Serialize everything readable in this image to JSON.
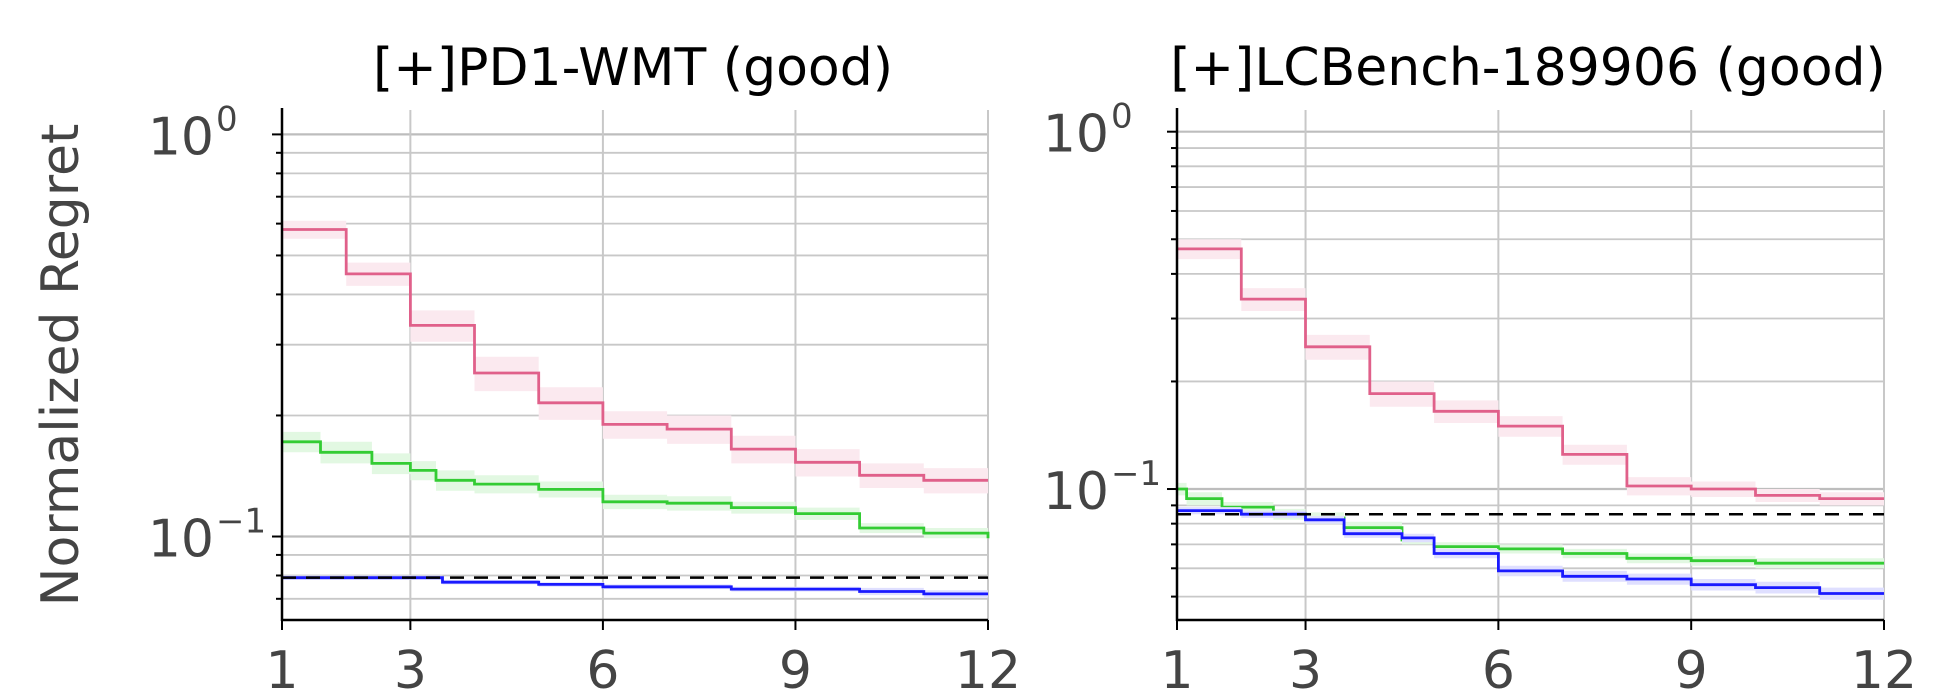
{
  "chart_data": [
    {
      "type": "line",
      "title": "[+]PD1-WMT (good)",
      "xlabel": "",
      "ylabel": "Normalized Regret",
      "yscale": "log",
      "xlim": [
        1,
        12
      ],
      "ylim": [
        0.062,
        1.15
      ],
      "xticks": [
        "1",
        "3",
        "6",
        "9",
        "12"
      ],
      "yticks": [
        {
          "base": "10",
          "exp": "0"
        },
        {
          "base": "10",
          "exp": "−1"
        }
      ],
      "grid": true,
      "series": [
        {
          "color": "#e0608a",
          "step": true,
          "x": [
            1,
            2,
            3,
            4,
            5,
            6,
            7,
            8,
            9,
            10,
            11,
            12
          ],
          "y": [
            0.58,
            0.45,
            0.335,
            0.255,
            0.215,
            0.19,
            0.185,
            0.165,
            0.153,
            0.142,
            0.138,
            0.138
          ],
          "band": [
            0.03,
            0.03,
            0.03,
            0.025,
            0.02,
            0.015,
            0.015,
            0.013,
            0.012,
            0.01,
            0.01,
            0.01
          ]
        },
        {
          "color": "#33cc33",
          "step": true,
          "x": [
            1,
            1.6,
            2.4,
            3,
            3.4,
            4,
            5,
            6,
            7,
            8,
            9,
            10,
            11,
            12
          ],
          "y": [
            0.172,
            0.162,
            0.152,
            0.146,
            0.138,
            0.135,
            0.131,
            0.122,
            0.121,
            0.118,
            0.114,
            0.105,
            0.102,
            0.099
          ],
          "band": [
            0.01,
            0.01,
            0.009,
            0.008,
            0.008,
            0.007,
            0.006,
            0.005,
            0.005,
            0.004,
            0.004,
            0.003,
            0.003,
            0.003
          ]
        },
        {
          "color": "#1a1aff",
          "step": true,
          "x": [
            1,
            2,
            3,
            3.5,
            4,
            5,
            6,
            7,
            8,
            9,
            10,
            11,
            12
          ],
          "y": [
            0.079,
            0.079,
            0.079,
            0.077,
            0.077,
            0.076,
            0.075,
            0.075,
            0.074,
            0.074,
            0.073,
            0.072,
            0.072
          ],
          "band": [
            0.001,
            0.001,
            0.001,
            0.001,
            0.001,
            0.001,
            0.001,
            0.001,
            0.001,
            0.001,
            0.0015,
            0.0015,
            0.0015
          ]
        },
        {
          "color": "#000000",
          "dashed": true,
          "x": [
            1,
            12
          ],
          "y": [
            0.079,
            0.079
          ]
        }
      ]
    },
    {
      "type": "line",
      "title": "[+]LCBench-189906 (good)",
      "xlabel": "",
      "ylabel": "",
      "yscale": "log",
      "xlim": [
        1,
        12
      ],
      "ylim": [
        0.043,
        1.15
      ],
      "xticks": [
        "1",
        "3",
        "6",
        "9",
        "12"
      ],
      "yticks": [
        {
          "base": "10",
          "exp": "0"
        },
        {
          "base": "10",
          "exp": "−1"
        }
      ],
      "grid": true,
      "series": [
        {
          "color": "#e0608a",
          "step": true,
          "x": [
            1,
            2,
            3,
            4,
            5,
            6,
            7,
            8,
            9,
            10,
            11,
            12
          ],
          "y": [
            0.47,
            0.34,
            0.25,
            0.185,
            0.165,
            0.15,
            0.125,
            0.102,
            0.1,
            0.096,
            0.094,
            0.094
          ],
          "band": [
            0.03,
            0.025,
            0.02,
            0.015,
            0.012,
            0.01,
            0.008,
            0.006,
            0.005,
            0.004,
            0.004,
            0.004
          ]
        },
        {
          "color": "#33cc33",
          "step": true,
          "x": [
            1,
            1.15,
            1.7,
            2.5,
            3,
            3.6,
            4.5,
            5,
            6,
            7,
            8,
            9,
            10,
            11,
            12
          ],
          "y": [
            0.1,
            0.094,
            0.089,
            0.085,
            0.083,
            0.078,
            0.072,
            0.069,
            0.068,
            0.066,
            0.064,
            0.063,
            0.062,
            0.062,
            0.062
          ],
          "band": [
            0.004,
            0.004,
            0.003,
            0.003,
            0.003,
            0.003,
            0.002,
            0.002,
            0.002,
            0.002,
            0.002,
            0.002,
            0.002,
            0.002,
            0.002
          ]
        },
        {
          "color": "#1a1aff",
          "step": true,
          "x": [
            1,
            2,
            3,
            3.6,
            4.5,
            5,
            6,
            7,
            8,
            9,
            10,
            11,
            12
          ],
          "y": [
            0.087,
            0.085,
            0.082,
            0.075,
            0.073,
            0.066,
            0.059,
            0.057,
            0.056,
            0.054,
            0.053,
            0.051,
            0.051
          ],
          "band": [
            0.002,
            0.002,
            0.002,
            0.002,
            0.002,
            0.002,
            0.002,
            0.002,
            0.002,
            0.002,
            0.002,
            0.002,
            0.002
          ]
        },
        {
          "color": "#000000",
          "dashed": true,
          "x": [
            1,
            12
          ],
          "y": [
            0.085,
            0.085
          ]
        }
      ]
    }
  ]
}
